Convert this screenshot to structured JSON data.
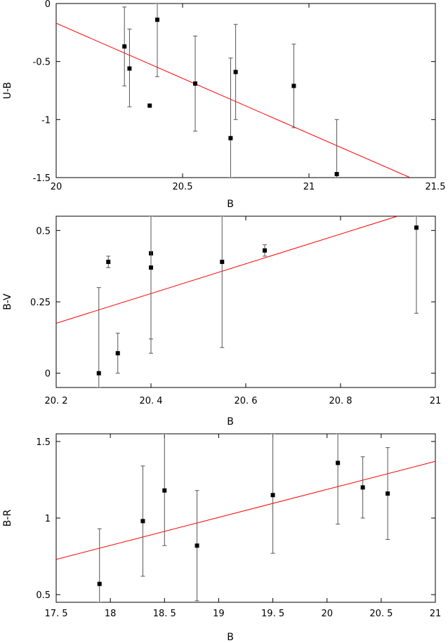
{
  "chart_data": [
    {
      "type": "scatter",
      "xlabel": "B",
      "ylabel": "U-B",
      "xlim": [
        20,
        21.5
      ],
      "ylim": [
        -1.5,
        0
      ],
      "xticks": [
        20,
        20.5,
        21,
        21.5
      ],
      "xtick_labels": [
        "20",
        "20.5",
        "21",
        "21.5"
      ],
      "yticks": [
        0,
        -0.5,
        -1,
        -1.5
      ],
      "ytick_labels": [
        "0",
        "-0.5",
        "-1",
        "-1.5"
      ],
      "grid": false,
      "colors": {
        "points": "#000000",
        "fit": "#ff0000",
        "error_bars": "#555555"
      },
      "points": [
        {
          "x": 20.27,
          "y": -0.37,
          "ylo": -0.71,
          "yhi": -0.03
        },
        {
          "x": 20.29,
          "y": -0.56,
          "ylo": -0.89,
          "yhi": -0.22
        },
        {
          "x": 20.37,
          "y": -0.88
        },
        {
          "x": 20.4,
          "y": -0.14,
          "ylo": -0.63,
          "yhi": 0.0
        },
        {
          "x": 20.55,
          "y": -0.69,
          "ylo": -1.1,
          "yhi": -0.28
        },
        {
          "x": 20.69,
          "y": -1.16,
          "ylo": -1.5,
          "yhi": -0.47
        },
        {
          "x": 20.71,
          "y": -0.59,
          "ylo": -1.0,
          "yhi": -0.18
        },
        {
          "x": 20.94,
          "y": -0.71,
          "ylo": -1.07,
          "yhi": -0.35
        },
        {
          "x": 21.11,
          "y": -1.47,
          "ylo": -1.5,
          "yhi": -1.0
        }
      ],
      "fit_line": [
        [
          20,
          -0.17
        ],
        [
          21.4,
          -1.5
        ]
      ]
    },
    {
      "type": "scatter",
      "xlabel": "B",
      "ylabel": "B-V",
      "xlim": [
        20.2,
        21
      ],
      "ylim": [
        -0.05,
        0.55
      ],
      "xticks": [
        20.2,
        20.4,
        20.6,
        20.8,
        21
      ],
      "xtick_labels": [
        "20. 2",
        "20. 4",
        "20. 6",
        "20. 8",
        "21"
      ],
      "yticks": [
        0,
        0.25,
        0.5
      ],
      "ytick_labels": [
        "0",
        "0.25",
        "0.5"
      ],
      "grid": false,
      "colors": {
        "points": "#000000",
        "fit": "#ff0000",
        "error_bars": "#555555"
      },
      "points": [
        {
          "x": 20.29,
          "y": 0.0,
          "ylo": -0.05,
          "yhi": 0.3
        },
        {
          "x": 20.31,
          "y": 0.39,
          "ylo": 0.37,
          "yhi": 0.41
        },
        {
          "x": 20.33,
          "y": 0.07,
          "ylo": 0.0,
          "yhi": 0.14
        },
        {
          "x": 20.4,
          "y": 0.42,
          "ylo": 0.12,
          "yhi": 0.55
        },
        {
          "x": 20.4,
          "y": 0.37,
          "ylo": 0.07,
          "yhi": 0.55
        },
        {
          "x": 20.55,
          "y": 0.39,
          "ylo": 0.09,
          "yhi": 0.55
        },
        {
          "x": 20.64,
          "y": 0.43,
          "ylo": 0.41,
          "yhi": 0.45
        },
        {
          "x": 20.96,
          "y": 0.51,
          "ylo": 0.21,
          "yhi": 0.55
        }
      ],
      "fit_line": [
        [
          20.2,
          0.175
        ],
        [
          20.92,
          0.55
        ]
      ]
    },
    {
      "type": "scatter",
      "xlabel": "B",
      "ylabel": "B-R",
      "xlim": [
        17.5,
        21
      ],
      "ylim": [
        0.45,
        1.55
      ],
      "xticks": [
        17.5,
        18,
        18.5,
        19,
        19.5,
        20,
        20.5,
        21
      ],
      "xtick_labels": [
        "17. 5",
        "18",
        "18. 5",
        "19",
        "19. 5",
        "20",
        "20. 5",
        "21"
      ],
      "yticks": [
        0.5,
        1,
        1.5
      ],
      "ytick_labels": [
        "0.5",
        "1",
        "1.5"
      ],
      "grid": false,
      "colors": {
        "points": "#000000",
        "fit": "#ff0000",
        "error_bars": "#555555"
      },
      "points": [
        {
          "x": 17.9,
          "y": 0.57,
          "ylo": 0.45,
          "yhi": 0.93
        },
        {
          "x": 18.3,
          "y": 0.98,
          "ylo": 0.62,
          "yhi": 1.34
        },
        {
          "x": 18.5,
          "y": 1.18,
          "ylo": 0.82,
          "yhi": 1.55
        },
        {
          "x": 18.8,
          "y": 0.82,
          "ylo": 0.46,
          "yhi": 1.18
        },
        {
          "x": 19.5,
          "y": 1.15,
          "ylo": 0.77,
          "yhi": 1.55
        },
        {
          "x": 20.1,
          "y": 1.36,
          "ylo": 0.96,
          "yhi": 1.55
        },
        {
          "x": 20.33,
          "y": 1.2,
          "ylo": 1.0,
          "yhi": 1.4
        },
        {
          "x": 20.56,
          "y": 1.16,
          "ylo": 0.86,
          "yhi": 1.46
        }
      ],
      "fit_line": [
        [
          17.5,
          0.73
        ],
        [
          21,
          1.37
        ]
      ]
    }
  ]
}
